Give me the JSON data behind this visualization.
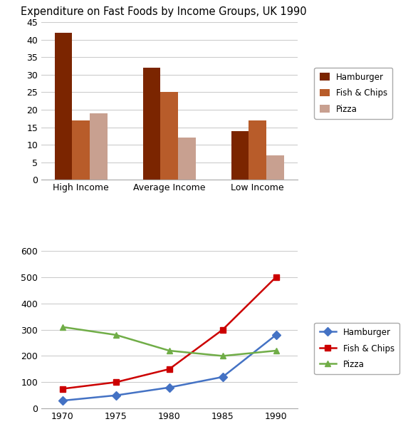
{
  "title_bar": "Expenditure on Fast Foods by Income Groups, UK 1990",
  "bar_categories": [
    "High Income",
    "Average Income",
    "Low Income"
  ],
  "bar_data": {
    "Hamburger": [
      42,
      32,
      14
    ],
    "Fish & Chips": [
      17,
      25,
      17
    ],
    "Pizza": [
      19,
      12,
      7
    ]
  },
  "bar_colors": {
    "Hamburger": "#7B2500",
    "Fish & Chips": "#B85C2A",
    "Pizza": "#C8A090"
  },
  "bar_ylim": [
    0,
    45
  ],
  "bar_yticks": [
    0,
    5,
    10,
    15,
    20,
    25,
    30,
    35,
    40,
    45
  ],
  "line_years": [
    1970,
    1975,
    1980,
    1985,
    1990
  ],
  "line_data": {
    "Hamburger": [
      30,
      50,
      80,
      120,
      280
    ],
    "Fish & Chips": [
      75,
      100,
      150,
      300,
      500
    ],
    "Pizza": [
      310,
      280,
      220,
      200,
      220
    ]
  },
  "line_colors": {
    "Hamburger": "#4472C4",
    "Fish & Chips": "#CC0000",
    "Pizza": "#70AD47"
  },
  "line_markers": {
    "Hamburger": "D",
    "Fish & Chips": "s",
    "Pizza": "^"
  },
  "line_ylim": [
    0,
    600
  ],
  "line_yticks": [
    0,
    100,
    200,
    300,
    400,
    500,
    600
  ],
  "line_xticks": [
    1970,
    1975,
    1980,
    1985,
    1990
  ],
  "legend_items": [
    "Hamburger",
    "Fish & Chips",
    "Pizza"
  ],
  "background_color": "#FFFFFF",
  "grid_color": "#CCCCCC"
}
